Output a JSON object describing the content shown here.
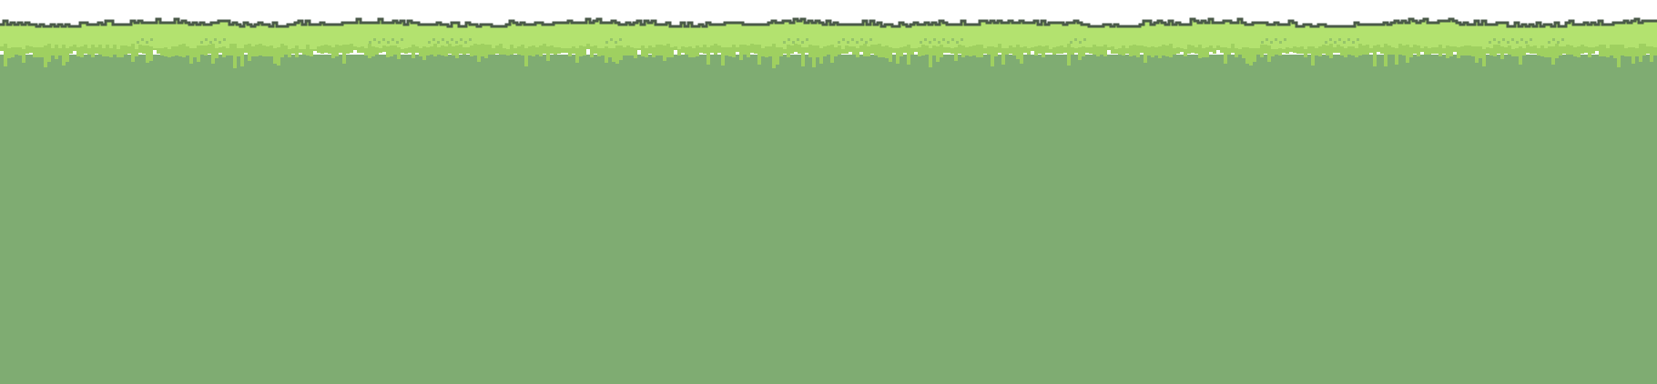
{
  "scene": {
    "sky_color": "#ffffff",
    "outline_color": "#4a5a48",
    "grass_top_color": "#b3e26f",
    "grass_mid_color": "#9fd060",
    "soil_color": "#7fac72",
    "tuft_color": "#95c46a"
  }
}
